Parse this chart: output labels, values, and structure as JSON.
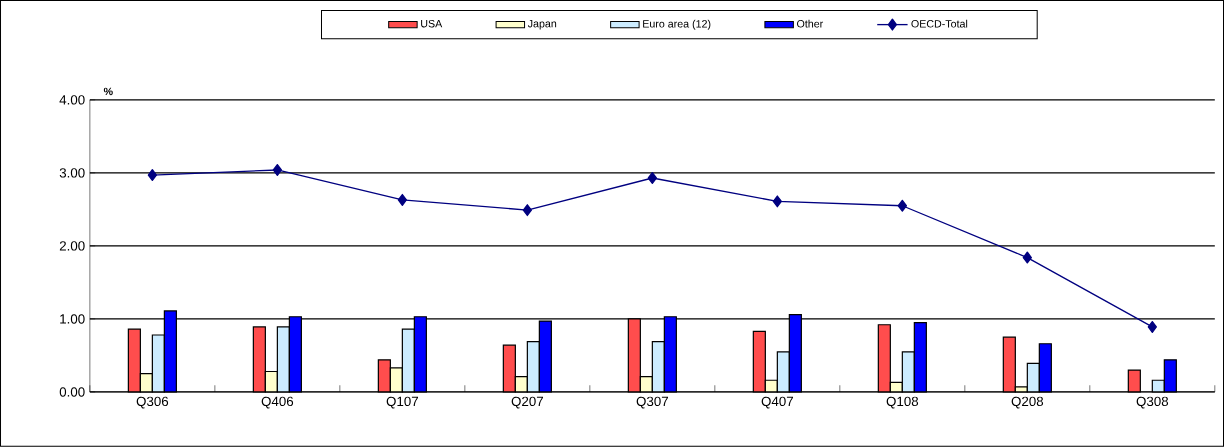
{
  "chart_data": {
    "type": "bar",
    "ylabel": "%",
    "categories": [
      "Q306",
      "Q406",
      "Q107",
      "Q207",
      "Q307",
      "Q407",
      "Q108",
      "Q208",
      "Q308"
    ],
    "series": [
      {
        "name": "USA",
        "color": "#ff4d4d",
        "values": [
          0.86,
          0.89,
          0.44,
          0.64,
          1.0,
          0.83,
          0.92,
          0.75,
          0.3
        ]
      },
      {
        "name": "Japan",
        "color": "#ffffcc",
        "values": [
          0.25,
          0.28,
          0.33,
          0.21,
          0.21,
          0.16,
          0.13,
          0.07,
          null
        ]
      },
      {
        "name": "Euro area (12)",
        "color": "#ccecff",
        "values": [
          0.78,
          0.89,
          0.86,
          0.69,
          0.69,
          0.55,
          0.55,
          0.39,
          0.16
        ]
      },
      {
        "name": "Other",
        "color": "#0000ff",
        "values": [
          1.11,
          1.03,
          1.03,
          0.97,
          1.03,
          1.06,
          0.95,
          0.66,
          0.44
        ]
      },
      {
        "name": "OECD-Total",
        "type": "line",
        "color": "#000080",
        "marker": "diamond",
        "values": [
          2.97,
          3.04,
          2.63,
          2.49,
          2.93,
          2.61,
          2.55,
          1.84,
          0.89
        ]
      }
    ],
    "ylim": [
      0,
      4
    ],
    "yticks": [
      {
        "value": 0,
        "label": "0.00"
      },
      {
        "value": 1,
        "label": "1.00"
      },
      {
        "value": 2,
        "label": "2.00"
      },
      {
        "value": 3,
        "label": "3.00"
      },
      {
        "value": 4,
        "label": "4.00"
      }
    ],
    "grid": "y",
    "legend": "top"
  }
}
